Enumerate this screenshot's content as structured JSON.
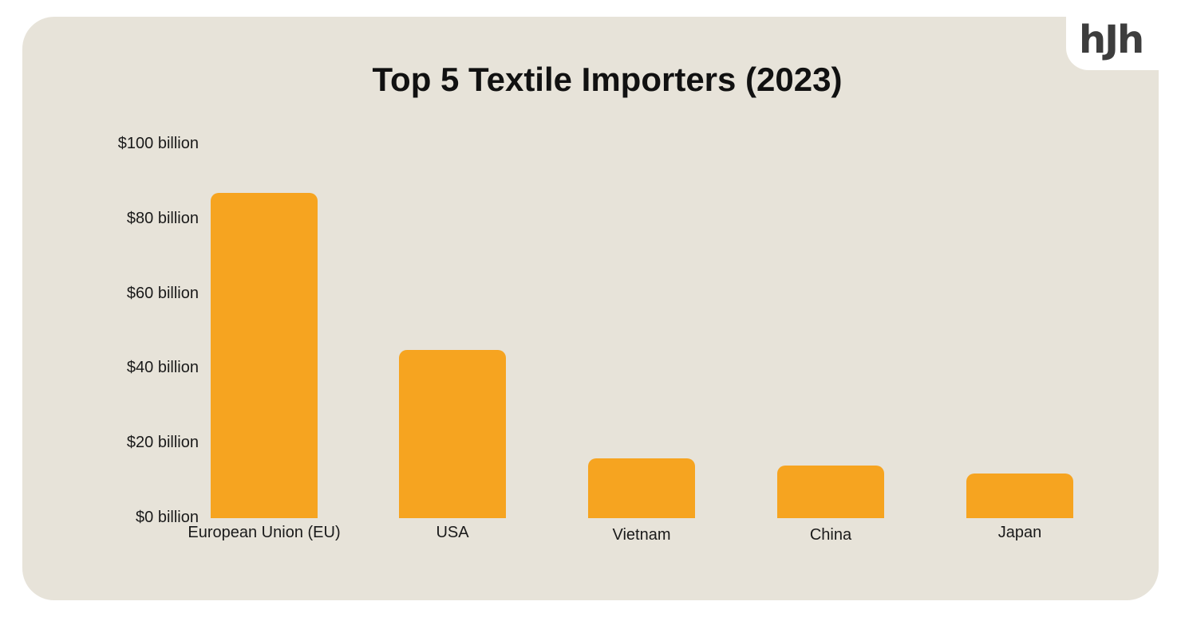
{
  "logo": {
    "text": "hJh"
  },
  "chart_data": {
    "type": "bar",
    "title": "Top 5 Textile Importers (2023)",
    "xlabel": "",
    "ylabel": "",
    "categories": [
      "European Union (EU)",
      "USA",
      "Vietnam",
      "China",
      "Japan"
    ],
    "values": [
      87,
      45,
      16,
      14,
      12
    ],
    "unit": "billion USD",
    "ylim": [
      0,
      100
    ],
    "yticks": [
      "$0 billion",
      "$20 billion",
      "$40 billion",
      "$60 billion",
      "$80 billion",
      "$100 billion"
    ],
    "grid": false,
    "legend": null,
    "bar_color": "#f6a420",
    "background_color": "#e7e3d9"
  }
}
